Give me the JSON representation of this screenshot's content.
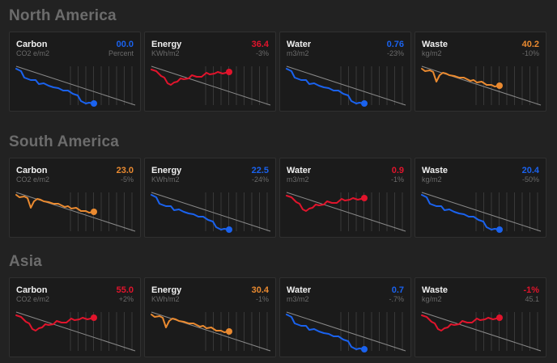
{
  "colors": {
    "blue": "#1a62ee",
    "red": "#e1142c",
    "orange": "#ea8a30"
  },
  "regions": [
    {
      "name": "North America",
      "metrics": [
        {
          "label": "Carbon",
          "unit": "CO2 e/m2",
          "value": "00.0",
          "change": "Percent",
          "trend": "down",
          "color": "#1a62ee"
        },
        {
          "label": "Energy",
          "unit": "KWh/m2",
          "value": "36.4",
          "change": "-3%",
          "trend": "up",
          "color": "#e1142c"
        },
        {
          "label": "Water",
          "unit": "m3/m2",
          "value": "0.76",
          "change": "-23%",
          "trend": "down",
          "color": "#1a62ee"
        },
        {
          "label": "Waste",
          "unit": "kg/m2",
          "value": "40.2",
          "change": "-10%",
          "trend": "mid",
          "color": "#ea8a30"
        }
      ]
    },
    {
      "name": "South America",
      "metrics": [
        {
          "label": "Carbon",
          "unit": "CO2 e/m2",
          "value": "23.0",
          "change": "-5%",
          "trend": "mid",
          "color": "#ea8a30"
        },
        {
          "label": "Energy",
          "unit": "KWh/m2",
          "value": "22.5",
          "change": "-24%",
          "trend": "down",
          "color": "#1a62ee"
        },
        {
          "label": "Water",
          "unit": "m3/m2",
          "value": "0.9",
          "change": "-1%",
          "trend": "up",
          "color": "#e1142c"
        },
        {
          "label": "Waste",
          "unit": "kg/m2",
          "value": "20.4",
          "change": "-50%",
          "trend": "down",
          "color": "#1a62ee"
        }
      ]
    },
    {
      "name": "Asia",
      "metrics": [
        {
          "label": "Carbon",
          "unit": "CO2 e/m2",
          "value": "55.0",
          "change": "+2%",
          "trend": "up",
          "color": "#e1142c"
        },
        {
          "label": "Energy",
          "unit": "KWh/m2",
          "value": "30.4",
          "change": "-1%",
          "trend": "mid",
          "color": "#ea8a30"
        },
        {
          "label": "Water",
          "unit": "m3/m2",
          "value": "0.7",
          "change": "-.7%",
          "trend": "down",
          "color": "#1a62ee"
        },
        {
          "label": "Waste",
          "unit": "kg/m2",
          "value": "-1%",
          "change": "45.1",
          "trend": "up",
          "color": "#e1142c"
        }
      ]
    }
  ]
}
